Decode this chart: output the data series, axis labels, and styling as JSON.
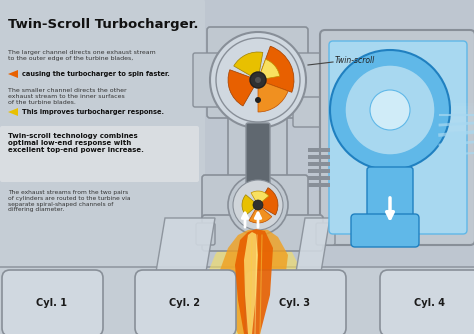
{
  "title": "Twin-Scroll Turbocharger.",
  "bg_top": "#b0b8c4",
  "bg_bottom": "#c8cfd8",
  "text_color": "#1a1a1a",
  "orange_color": "#e86000",
  "orange_light": "#f09020",
  "yellow_color": "#e8c000",
  "yellow_light": "#f8e060",
  "blue_dark": "#2080c0",
  "blue_mid": "#60b8e8",
  "blue_light": "#a8d8f0",
  "blue_vlight": "#d0ecf8",
  "gray_dark": "#606870",
  "gray_mid": "#888f98",
  "gray_light": "#b8c0c8",
  "gray_vlight": "#d0d8e0",
  "gray_housing": "#c0c8d0",
  "white": "#ffffff",
  "text1_header": "The larger channel directs one exhaust stream\nto the outer edge of the turbine blades,",
  "text1_bold": "causing the turbocharger to spin faster.",
  "text2_header": "The smaller channel directs the other\nexhaust stream to the inner surfaces\nof the turbine blades.",
  "text2_bold": "This improves turbocharger response.",
  "text3_bold": "Twin-scroll technology combines\noptimal low-end response with\nexcellent top-end power increase.",
  "text4": "The exhaust streams from the two pairs\nof cylinders are routed to the turbine via\nseparate spiral-shaped channels of\ndiffering diameter.",
  "twin_scroll_label": "Twin-scroll",
  "cyl_labels": [
    "Cyl. 1",
    "Cyl. 2",
    "Cyl. 3",
    "Cyl. 4"
  ]
}
